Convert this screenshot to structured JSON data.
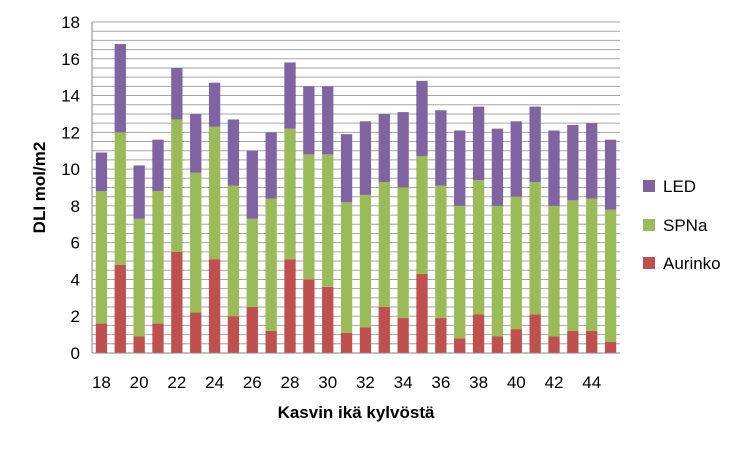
{
  "chart_data": {
    "type": "bar",
    "stacked": true,
    "xlabel": "Kasvin ikä kylvöstä",
    "ylabel": "DLI mol/m2",
    "ylim": [
      0,
      18
    ],
    "yticks": [
      0,
      2,
      4,
      6,
      8,
      10,
      12,
      14,
      16,
      18
    ],
    "grid": true,
    "legend_position": "right",
    "categories": [
      18,
      19,
      20,
      21,
      22,
      23,
      24,
      25,
      26,
      27,
      28,
      29,
      30,
      31,
      32,
      33,
      34,
      35,
      36,
      37,
      38,
      39,
      40,
      41,
      42,
      43,
      44,
      45
    ],
    "xtick_labels": [
      "18",
      "20",
      "22",
      "24",
      "26",
      "28",
      "30",
      "32",
      "34",
      "36",
      "38",
      "40",
      "42",
      "44"
    ],
    "series": [
      {
        "name": "Aurinko",
        "color": "#c0504d",
        "values": [
          1.6,
          4.8,
          0.9,
          1.6,
          5.5,
          2.2,
          5.1,
          2.0,
          2.5,
          1.2,
          5.1,
          4.0,
          3.6,
          1.1,
          1.4,
          2.5,
          1.9,
          4.3,
          1.9,
          0.8,
          2.1,
          0.9,
          1.3,
          2.1,
          0.9,
          1.2,
          1.2,
          0.6
        ]
      },
      {
        "name": "SPNa",
        "color": "#9bbb59",
        "values": [
          7.2,
          7.2,
          6.4,
          7.2,
          7.2,
          7.6,
          7.2,
          7.1,
          4.8,
          7.2,
          7.1,
          6.8,
          7.2,
          7.1,
          7.2,
          6.8,
          7.1,
          6.4,
          7.2,
          7.2,
          7.3,
          7.1,
          7.2,
          7.2,
          7.1,
          7.1,
          7.2,
          7.2
        ]
      },
      {
        "name": "LED",
        "color": "#8064a2",
        "values": [
          2.1,
          4.8,
          2.9,
          2.8,
          2.8,
          3.2,
          2.4,
          3.6,
          3.7,
          3.6,
          3.6,
          3.7,
          3.7,
          3.7,
          4.0,
          3.7,
          4.1,
          4.1,
          4.1,
          4.1,
          4.0,
          4.2,
          4.1,
          4.1,
          4.1,
          4.1,
          4.1,
          3.8
        ]
      }
    ],
    "legend_order": [
      "LED",
      "SPNa",
      "Aurinko"
    ]
  }
}
